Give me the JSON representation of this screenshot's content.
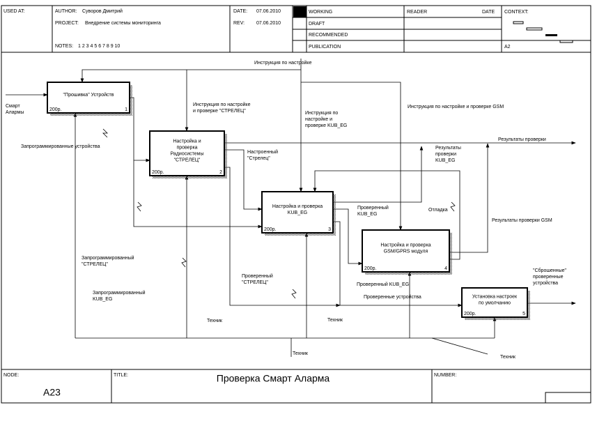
{
  "header": {
    "used_at": "USED AT:",
    "author_label": "AUTHOR:",
    "author": "Суворов Дмитрий",
    "project_label": "PROJECT:",
    "project": "Внедрение системы мониторинга",
    "notes_label": "NOTES:",
    "notes": "1 2 3 4 5 6 7 8 9 10",
    "date_label": "DATE:",
    "date": "07.06.2010",
    "rev_label": "REV:",
    "rev": "07.06.2010",
    "statuses": [
      "WORKING",
      "DRAFT",
      "RECOMMENDED",
      "PUBLICATION"
    ],
    "reader": "READER",
    "reader_date": "DATE",
    "context": "CONTEXT:",
    "context_node": "A2"
  },
  "footer": {
    "node_label": "NODE:",
    "node": "A23",
    "title_label": "TITLE:",
    "title": "Проверка Смарт Аларма",
    "number_label": "NUMBER:"
  },
  "nodes": [
    {
      "lines": [
        "\"Прошивка\" Устройств"
      ],
      "cost": "200р.",
      "number": "1"
    },
    {
      "lines": [
        "Настройка и",
        "проверка",
        "Радиосистемы",
        "\"СТРЕЛЕЦ\""
      ],
      "cost": "200р.",
      "number": "2"
    },
    {
      "lines": [
        "Настройка и проверка",
        "KUB_EG"
      ],
      "cost": "200р.",
      "number": "3"
    },
    {
      "lines": [
        "Настройка и проверка",
        "GSM/GPRS модуля"
      ],
      "cost": "200р.",
      "number": "4"
    },
    {
      "lines": [
        "Установка настроек",
        "по умолчанию"
      ],
      "cost": "200р.",
      "number": "5"
    }
  ],
  "arrow_labels": [
    {
      "lines": [
        "Смарт",
        "Алармы"
      ]
    },
    {
      "lines": [
        "Запрограммированные устройства"
      ]
    },
    {
      "lines": [
        "Инструкция по настройке"
      ]
    },
    {
      "lines": [
        "Инструкция по настройке",
        "и проверке \"СТРЕЛЕЦ\""
      ]
    },
    {
      "lines": [
        "Инструкция по",
        "настройке и",
        "проверке KUB_EG"
      ]
    },
    {
      "lines": [
        "Инструкция по настройке и проверке GSM"
      ]
    },
    {
      "lines": [
        "Результаты проверки"
      ]
    },
    {
      "lines": [
        "Настроенный",
        "\"Стрелец\""
      ]
    },
    {
      "lines": [
        "Результаты",
        "проверки",
        "KUB_EG"
      ]
    },
    {
      "lines": [
        "Отладка"
      ]
    },
    {
      "lines": [
        "Проверенный",
        "KUB_EG"
      ]
    },
    {
      "lines": [
        "Результаты проверки GSM"
      ]
    },
    {
      "lines": [
        "Запрограммированный",
        "\"СТРЕЛЕЦ\""
      ]
    },
    {
      "lines": [
        "Запрограммированный",
        "KUB_EG"
      ]
    },
    {
      "lines": [
        "Проверенный",
        "\"СТРЕЛЕЦ\""
      ]
    },
    {
      "lines": [
        "Проверенный KUB_EG"
      ]
    },
    {
      "lines": [
        "Проверенные устройства"
      ]
    },
    {
      "lines": [
        "\"Сброшенные\"",
        "проверенные",
        "устройства"
      ]
    },
    {
      "lines": [
        "Техник"
      ]
    },
    {
      "lines": [
        "Техник"
      ]
    },
    {
      "lines": [
        "Техник"
      ]
    },
    {
      "lines": [
        "Техник"
      ]
    }
  ]
}
